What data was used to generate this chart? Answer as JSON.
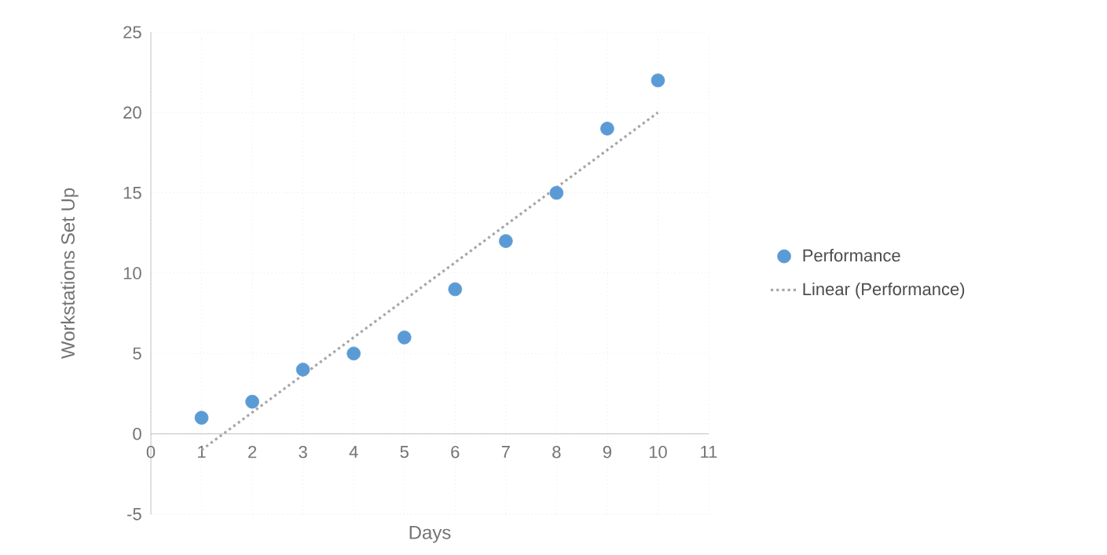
{
  "chart_data": {
    "type": "scatter",
    "xlabel": "Days",
    "ylabel": "Workstations Set Up",
    "xlim": [
      0,
      11
    ],
    "xticks": [
      0,
      1,
      2,
      3,
      4,
      5,
      6,
      7,
      8,
      9,
      10,
      11
    ],
    "ylim": [
      -5,
      25
    ],
    "yticks": [
      -5,
      0,
      5,
      10,
      15,
      20,
      25
    ],
    "grid": true,
    "legend": "right",
    "series": [
      {
        "name": "Performance",
        "type": "scatter",
        "marker": "circle",
        "color": "#5b9bd5",
        "x": [
          1,
          2,
          3,
          4,
          5,
          6,
          7,
          8,
          9,
          10
        ],
        "values": [
          1,
          2,
          4,
          5,
          6,
          9,
          12,
          15,
          19,
          22
        ]
      },
      {
        "name": "Linear (Performance)",
        "type": "line",
        "line_style": "dotted",
        "color": "#a6a6a6",
        "x": [
          1,
          10
        ],
        "values": [
          -1,
          20
        ]
      }
    ]
  }
}
